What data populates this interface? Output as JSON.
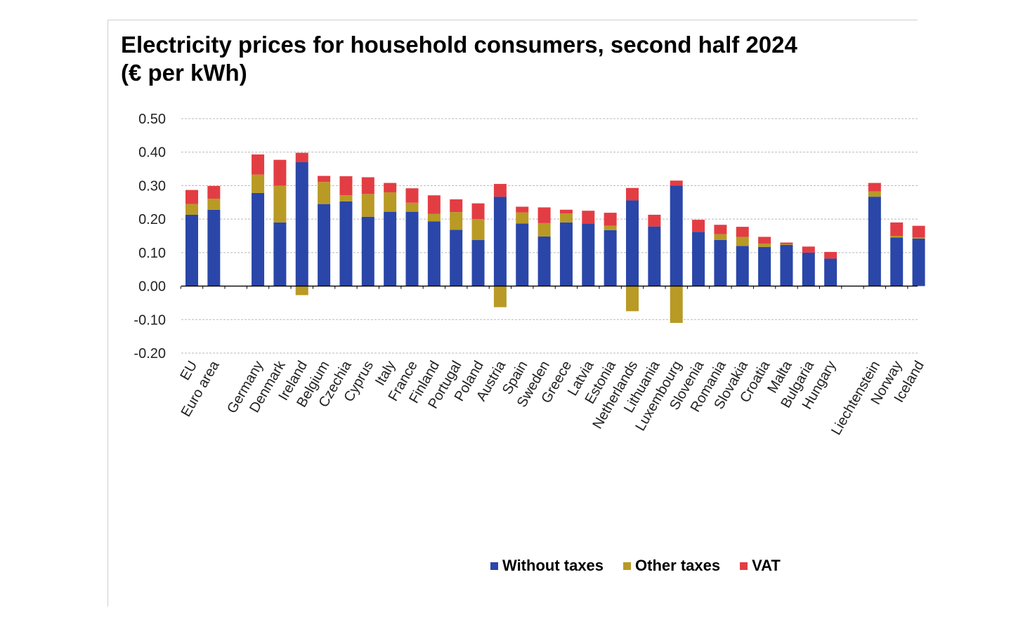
{
  "chart_data": {
    "type": "bar",
    "stacked": true,
    "title_line1": "Electricity prices for household consumers, second half 2024",
    "title_line2": "(€ per kWh)",
    "ylim": [
      -0.2,
      0.5
    ],
    "yticks": [
      "0.50",
      "0.40",
      "0.30",
      "0.20",
      "0.10",
      "0.00",
      "-0.10",
      "-0.20"
    ],
    "grid": true,
    "legend_position": "bottom",
    "categories": [
      "EU",
      "Euro area",
      "",
      "Germany",
      "Denmark",
      "Ireland",
      "Belgium",
      "Czechia",
      "Cyprus",
      "Italy",
      "France",
      "Finland",
      "Portugal",
      "Poland",
      "Austria",
      "Spain",
      "Sweden",
      "Greece",
      "Latvia",
      "Estonia",
      "Netherlands",
      "Lithuania",
      "Luxembourg",
      "Slovenia",
      "Romania",
      "Slovakia",
      "Croatia",
      "Malta",
      "Bulgaria",
      "Hungary",
      "",
      "Liechtenstein",
      "Norway",
      "Iceland"
    ],
    "series": [
      {
        "name": "Without taxes",
        "color": "#2a46a8",
        "values": [
          0.213,
          0.228,
          null,
          0.278,
          0.19,
          0.37,
          0.245,
          0.253,
          0.207,
          0.222,
          0.222,
          0.193,
          0.168,
          0.138,
          0.267,
          0.187,
          0.148,
          0.19,
          0.187,
          0.167,
          0.256,
          0.178,
          0.3,
          0.162,
          0.138,
          0.12,
          0.117,
          0.123,
          0.1,
          0.082,
          null,
          0.267,
          0.145,
          0.142
        ]
      },
      {
        "name": "Other taxes",
        "color": "#b89a25",
        "values": [
          0.032,
          0.033,
          null,
          0.055,
          0.11,
          -0.027,
          0.066,
          0.018,
          0.068,
          0.058,
          0.027,
          0.023,
          0.053,
          0.062,
          -0.063,
          0.033,
          0.04,
          0.027,
          0.0,
          0.013,
          -0.075,
          0.0,
          -0.11,
          0.0,
          0.017,
          0.027,
          0.01,
          0.002,
          0.0,
          0.0,
          null,
          0.016,
          0.005,
          0.003
        ]
      },
      {
        "name": "VAT",
        "color": "#e33d44",
        "values": [
          0.042,
          0.038,
          null,
          0.06,
          0.077,
          0.028,
          0.018,
          0.057,
          0.05,
          0.028,
          0.043,
          0.055,
          0.038,
          0.047,
          0.038,
          0.017,
          0.047,
          0.011,
          0.038,
          0.039,
          0.037,
          0.035,
          0.015,
          0.036,
          0.028,
          0.03,
          0.02,
          0.005,
          0.018,
          0.02,
          null,
          0.025,
          0.04,
          0.035
        ]
      }
    ]
  }
}
